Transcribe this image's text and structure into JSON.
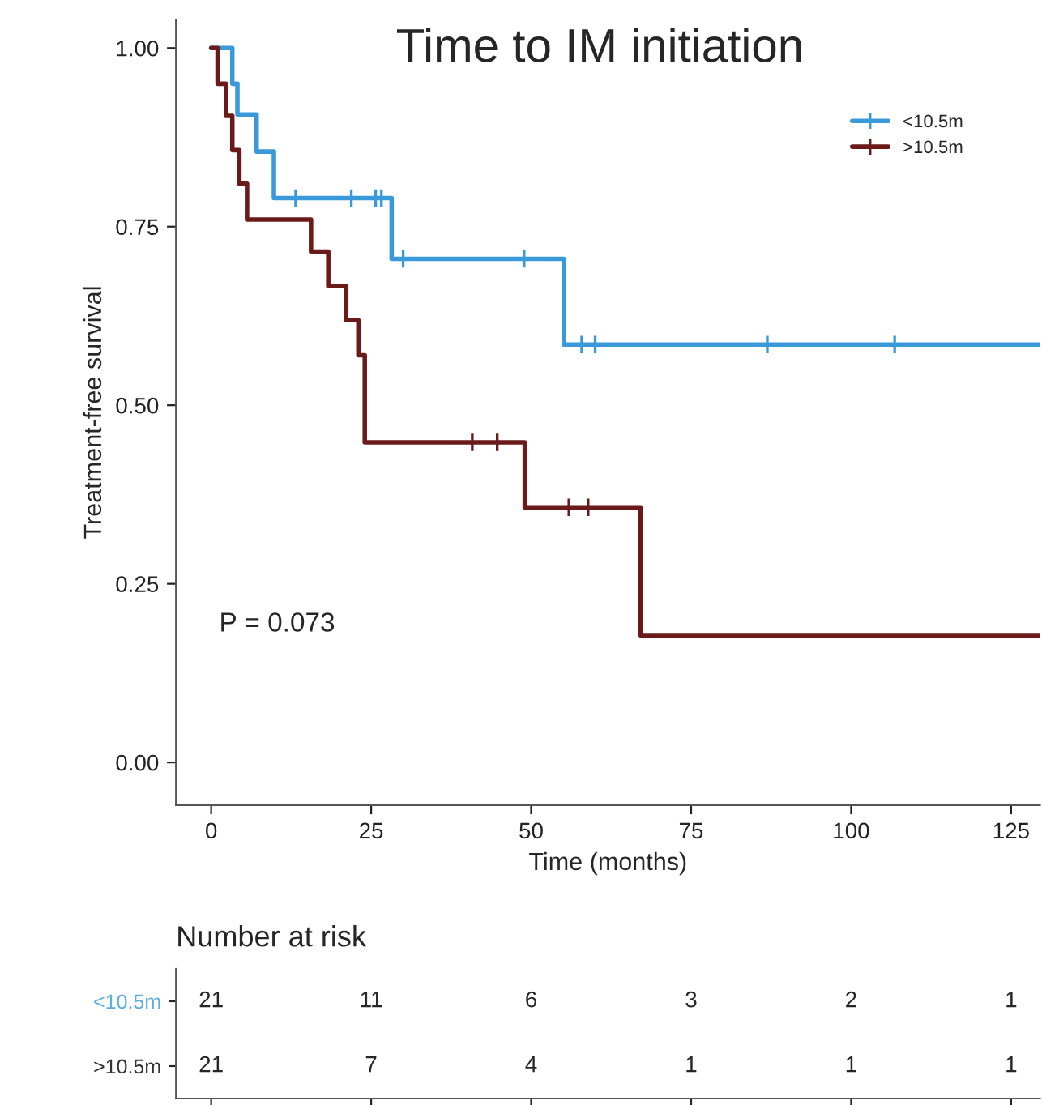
{
  "chart_data": [
    {
      "type": "step",
      "title": "Time to IM initiation",
      "xlabel": "Time (months)",
      "ylabel": "Treatment-free survival",
      "xlim": [
        -5.5,
        129.5
      ],
      "ylim": [
        -0.06,
        1.04
      ],
      "xticks": [
        0,
        25,
        50,
        75,
        100,
        125
      ],
      "yticks": [
        {
          "value": 0,
          "label": "0.00"
        },
        {
          "value": 0.25,
          "label": "0.25"
        },
        {
          "value": 0.5,
          "label": "0.50"
        },
        {
          "value": 0.75,
          "label": "0.75"
        },
        {
          "value": 1,
          "label": "1.00"
        }
      ],
      "grid": false,
      "legend": "top right",
      "annotations": [
        "P = 0.073"
      ],
      "series": [
        {
          "name": "<10.5m",
          "color": "#3a9ad9",
          "x": [
            0,
            3.3,
            4.1,
            7.1,
            9.8,
            28.2,
            55.1,
            129.5
          ],
          "values": [
            1,
            0.95,
            0.907,
            0.855,
            0.79,
            0.705,
            0.585,
            0.585
          ]
        },
        {
          "name": ">10.5m",
          "color": "#6b1a1a",
          "x": [
            0,
            1.0,
            2.3,
            3.3,
            4.4,
            5.6,
            15.6,
            18.3,
            21.1,
            23,
            24,
            49,
            67.1,
            129.5
          ],
          "values": [
            1,
            0.95,
            0.905,
            0.857,
            0.81,
            0.76,
            0.715,
            0.667,
            0.619,
            0.57,
            0.448,
            0.357,
            0.178,
            0.178
          ]
        },
        {
          "type": "scatter",
          "marker": "cross",
          "color": "#3a9ad9",
          "x": [
            13.2,
            21.9,
            25.7,
            26.6,
            30,
            48.9,
            57.9,
            60,
            86.9,
            106.8
          ],
          "values": [
            0.79,
            0.79,
            0.79,
            0.79,
            0.705,
            0.705,
            0.585,
            0.585,
            0.585,
            0.585
          ]
        },
        {
          "type": "scatter",
          "marker": "cross",
          "color": "#6b1a1a",
          "x": [
            40.8,
            44.7,
            55.9,
            58.9
          ],
          "values": [
            0.448,
            0.448,
            0.357,
            0.357
          ]
        }
      ]
    },
    {
      "type": "other",
      "title": "Number at risk",
      "y_categories": [
        "<10.5m",
        ">10.5m"
      ],
      "colors": [
        "#5aaee0",
        "#333333"
      ],
      "cell_labels": [
        [
          "21",
          "11",
          "6",
          "3",
          "2",
          "1"
        ],
        [
          "21",
          "7",
          "4",
          "1",
          "1",
          "1"
        ]
      ]
    }
  ]
}
